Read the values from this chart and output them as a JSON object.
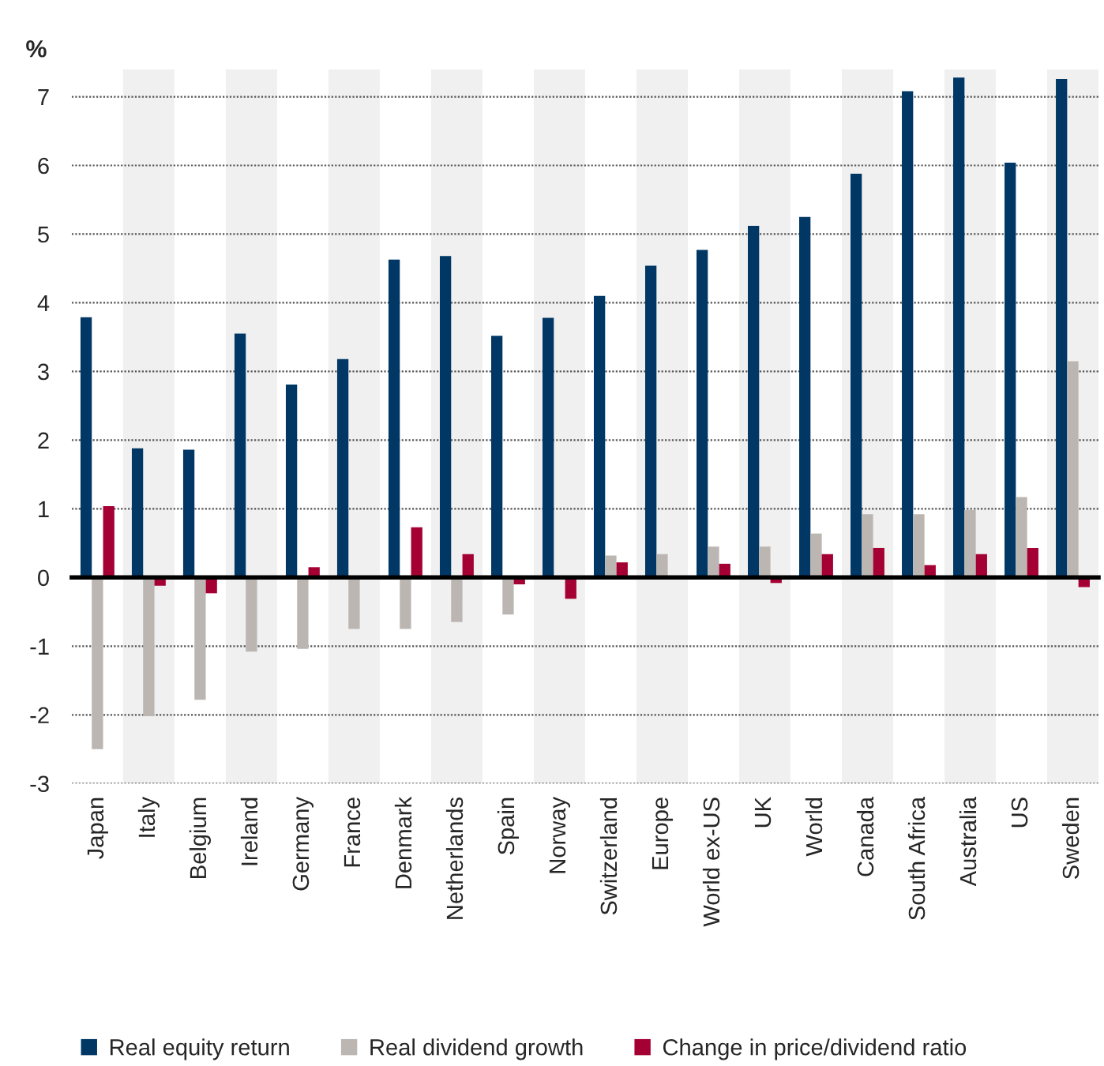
{
  "chart_data": {
    "type": "bar",
    "ylabel": "%",
    "categories": [
      "Japan",
      "Italy",
      "Belgium",
      "Ireland",
      "Germany",
      "France",
      "Denmark",
      "Netherlands",
      "Spain",
      "Norway",
      "Switzerland",
      "Europe",
      "World ex-US",
      "UK",
      "World",
      "Canada",
      "South Africa",
      "Australia",
      "US",
      "Sweden"
    ],
    "series": [
      {
        "name": "Real equity return",
        "color": "#003764",
        "values": [
          3.79,
          1.88,
          1.86,
          3.55,
          2.81,
          3.18,
          4.63,
          4.68,
          3.52,
          3.78,
          4.1,
          4.54,
          4.77,
          5.12,
          5.25,
          5.88,
          7.08,
          7.28,
          6.04,
          7.26
        ]
      },
      {
        "name": "Real dividend growth",
        "color": "#bcb6b3",
        "values": [
          -2.5,
          -2.02,
          -1.78,
          -1.08,
          -1.04,
          -0.75,
          -0.75,
          -0.65,
          -0.54,
          null,
          0.32,
          0.34,
          0.45,
          0.45,
          0.64,
          0.92,
          0.92,
          0.98,
          1.17,
          3.15
        ]
      },
      {
        "name": "Change in price/dividend ratio",
        "color": "#a50034",
        "values": [
          1.04,
          -0.12,
          -0.23,
          0.01,
          0.15,
          0.0,
          0.73,
          0.34,
          -0.1,
          -0.31,
          0.22,
          null,
          0.2,
          -0.08,
          0.34,
          0.43,
          0.18,
          0.34,
          0.43,
          -0.14
        ]
      }
    ],
    "ylim": [
      -3,
      7.4
    ],
    "yticks": [
      -3,
      -2,
      -1,
      0,
      1,
      2,
      3,
      4,
      5,
      6,
      7
    ],
    "grid": "y",
    "legend": "bottom"
  }
}
